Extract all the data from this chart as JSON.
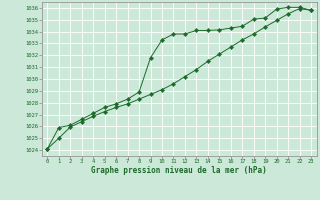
{
  "title": "Graphe pression niveau de la mer (hPa)",
  "bg_color": "#cce8d8",
  "grid_color": "#ffffff",
  "line_color": "#1a6b2a",
  "xlim": [
    -0.5,
    23.5
  ],
  "ylim": [
    1023.5,
    1036.5
  ],
  "yticks": [
    1024,
    1025,
    1026,
    1027,
    1028,
    1029,
    1030,
    1031,
    1032,
    1033,
    1034,
    1035,
    1036
  ],
  "xticks": [
    0,
    1,
    2,
    3,
    4,
    5,
    6,
    7,
    8,
    9,
    10,
    11,
    12,
    13,
    14,
    15,
    16,
    17,
    18,
    19,
    20,
    21,
    22,
    23
  ],
  "line1_x": [
    0,
    1,
    2,
    3,
    4,
    5,
    6,
    7,
    8,
    9,
    10,
    11,
    12,
    13,
    14,
    15,
    16,
    17,
    18,
    19,
    20,
    21,
    22,
    23
  ],
  "line1_y": [
    1024.1,
    1025.9,
    1026.1,
    1026.6,
    1027.1,
    1027.6,
    1027.9,
    1028.3,
    1028.9,
    1031.8,
    1033.3,
    1033.8,
    1033.8,
    1034.1,
    1034.1,
    1034.15,
    1034.3,
    1034.45,
    1035.05,
    1035.15,
    1035.9,
    1036.05,
    1036.05,
    1035.8
  ],
  "line2_x": [
    0,
    1,
    2,
    3,
    4,
    5,
    6,
    7,
    8,
    9,
    10,
    11,
    12,
    13,
    14,
    15,
    16,
    17,
    18,
    19,
    20,
    21,
    22,
    23
  ],
  "line2_y": [
    1024.1,
    1025.0,
    1025.95,
    1026.4,
    1026.85,
    1027.25,
    1027.6,
    1027.9,
    1028.3,
    1028.7,
    1029.1,
    1029.6,
    1030.2,
    1030.8,
    1031.5,
    1032.1,
    1032.7,
    1033.3,
    1033.8,
    1034.4,
    1034.95,
    1035.5,
    1035.95,
    1035.8
  ]
}
